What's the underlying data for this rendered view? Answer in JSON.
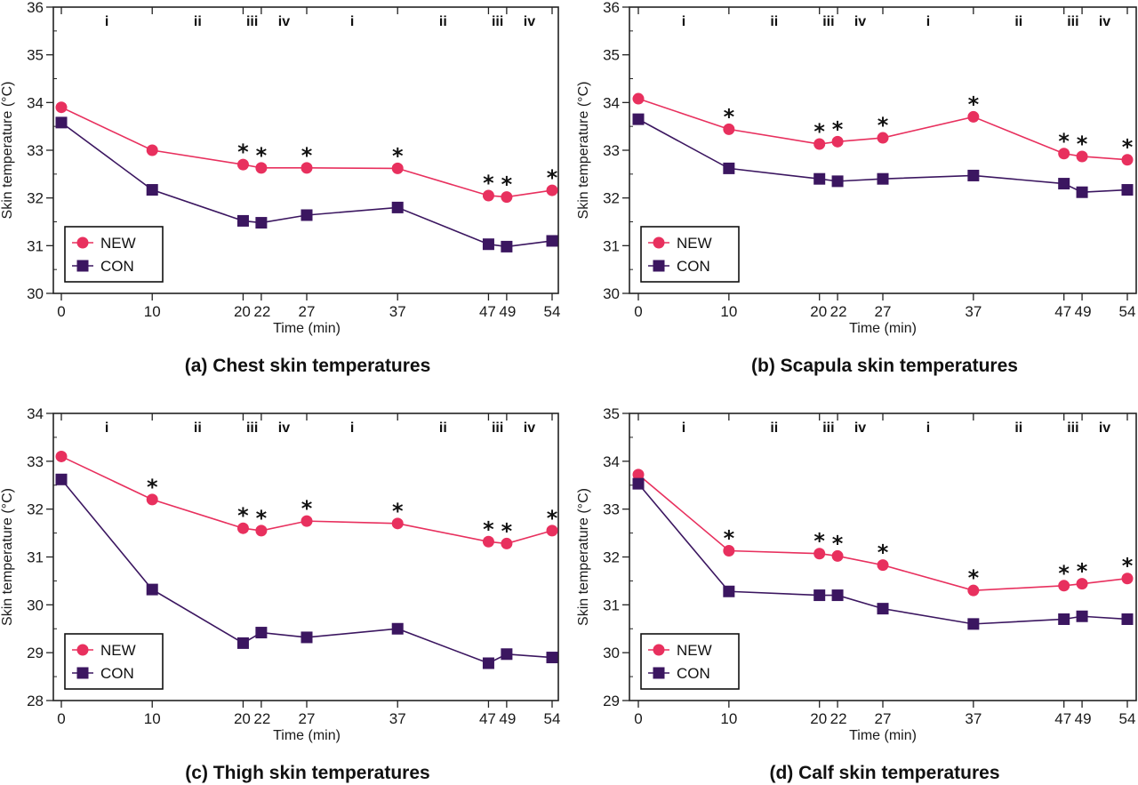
{
  "colors": {
    "NEW": "#E8305E",
    "CON": "#3B1660",
    "axis": "#222222"
  },
  "chart_data": [
    {
      "id": "a",
      "type": "line",
      "title": "(a) Chest skin temperatures",
      "xlabel": "Time (min)",
      "ylabel": "Skin temperature (°C)",
      "x": [
        0,
        10,
        20,
        22,
        27,
        37,
        47,
        49,
        54
      ],
      "x_tick_labels": [
        "0",
        "10",
        "20",
        "22",
        "27",
        "37",
        "47",
        "49",
        "54"
      ],
      "ylim": [
        30,
        36
      ],
      "y_ticks": [
        30,
        31,
        32,
        33,
        34,
        35,
        36
      ],
      "phases": [
        {
          "label": "i",
          "from": 0,
          "to": 10
        },
        {
          "label": "ii",
          "from": 10,
          "to": 20
        },
        {
          "label": "iii",
          "from": 20,
          "to": 22
        },
        {
          "label": "iv",
          "from": 22,
          "to": 27
        },
        {
          "label": "i",
          "from": 27,
          "to": 37
        },
        {
          "label": "ii",
          "from": 37,
          "to": 47
        },
        {
          "label": "iii",
          "from": 47,
          "to": 49
        },
        {
          "label": "iv",
          "from": 49,
          "to": 54
        }
      ],
      "series": [
        {
          "name": "NEW",
          "marker": "circle",
          "values": [
            33.9,
            33.0,
            32.7,
            32.63,
            32.63,
            32.62,
            32.05,
            32.02,
            32.16
          ]
        },
        {
          "name": "CON",
          "marker": "square",
          "values": [
            33.58,
            32.17,
            31.52,
            31.48,
            31.64,
            31.8,
            31.03,
            30.98,
            31.1
          ]
        }
      ],
      "significant_at": [
        20,
        22,
        27,
        37,
        47,
        49,
        54
      ],
      "significance_symbol": "*",
      "legend": "bottom-left",
      "grid": false
    },
    {
      "id": "b",
      "type": "line",
      "title": "(b) Scapula skin temperatures",
      "xlabel": "Time (min)",
      "ylabel": "Skin temperature (°C)",
      "x": [
        0,
        10,
        20,
        22,
        27,
        37,
        47,
        49,
        54
      ],
      "x_tick_labels": [
        "0",
        "10",
        "20",
        "22",
        "27",
        "37",
        "47",
        "49",
        "54"
      ],
      "ylim": [
        30,
        36
      ],
      "y_ticks": [
        30,
        31,
        32,
        33,
        34,
        35,
        36
      ],
      "phases": [
        {
          "label": "i",
          "from": 0,
          "to": 10
        },
        {
          "label": "ii",
          "from": 10,
          "to": 20
        },
        {
          "label": "iii",
          "from": 20,
          "to": 22
        },
        {
          "label": "iv",
          "from": 22,
          "to": 27
        },
        {
          "label": "i",
          "from": 27,
          "to": 37
        },
        {
          "label": "ii",
          "from": 37,
          "to": 47
        },
        {
          "label": "iii",
          "from": 47,
          "to": 49
        },
        {
          "label": "iv",
          "from": 49,
          "to": 54
        }
      ],
      "series": [
        {
          "name": "NEW",
          "marker": "circle",
          "values": [
            34.08,
            33.44,
            33.13,
            33.18,
            33.26,
            33.7,
            32.93,
            32.87,
            32.8
          ]
        },
        {
          "name": "CON",
          "marker": "square",
          "values": [
            33.65,
            32.62,
            32.4,
            32.35,
            32.4,
            32.47,
            32.3,
            32.12,
            32.17
          ]
        }
      ],
      "significant_at": [
        10,
        20,
        22,
        27,
        37,
        47,
        49,
        54
      ],
      "significance_symbol": "*",
      "legend": "bottom-left",
      "grid": false
    },
    {
      "id": "c",
      "type": "line",
      "title": "(c) Thigh skin temperatures",
      "xlabel": "Time (min)",
      "ylabel": "Skin temperature (°C)",
      "x": [
        0,
        10,
        20,
        22,
        27,
        37,
        47,
        49,
        54
      ],
      "x_tick_labels": [
        "0",
        "10",
        "20",
        "22",
        "27",
        "37",
        "47",
        "49",
        "54"
      ],
      "ylim": [
        28,
        34
      ],
      "y_ticks": [
        28,
        29,
        30,
        31,
        32,
        33,
        34
      ],
      "phases": [
        {
          "label": "i",
          "from": 0,
          "to": 10
        },
        {
          "label": "ii",
          "from": 10,
          "to": 20
        },
        {
          "label": "iii",
          "from": 20,
          "to": 22
        },
        {
          "label": "iv",
          "from": 22,
          "to": 27
        },
        {
          "label": "i",
          "from": 27,
          "to": 37
        },
        {
          "label": "ii",
          "from": 37,
          "to": 47
        },
        {
          "label": "iii",
          "from": 47,
          "to": 49
        },
        {
          "label": "iv",
          "from": 49,
          "to": 54
        }
      ],
      "series": [
        {
          "name": "NEW",
          "marker": "circle",
          "values": [
            33.1,
            32.2,
            31.6,
            31.55,
            31.75,
            31.7,
            31.32,
            31.28,
            31.55
          ]
        },
        {
          "name": "CON",
          "marker": "square",
          "values": [
            32.62,
            30.32,
            29.2,
            29.42,
            29.32,
            29.5,
            28.78,
            28.97,
            28.9
          ]
        }
      ],
      "significant_at": [
        10,
        20,
        22,
        27,
        37,
        47,
        49,
        54
      ],
      "significance_symbol": "*",
      "legend": "bottom-left",
      "grid": false
    },
    {
      "id": "d",
      "type": "line",
      "title": "(d) Calf skin temperatures",
      "xlabel": "Time (min)",
      "ylabel": "Skin temperature (°C)",
      "x": [
        0,
        10,
        20,
        22,
        27,
        37,
        47,
        49,
        54
      ],
      "x_tick_labels": [
        "0",
        "10",
        "20",
        "22",
        "27",
        "37",
        "47",
        "49",
        "54"
      ],
      "ylim": [
        29,
        35
      ],
      "y_ticks": [
        29,
        30,
        31,
        32,
        33,
        34,
        35
      ],
      "phases": [
        {
          "label": "i",
          "from": 0,
          "to": 10
        },
        {
          "label": "ii",
          "from": 10,
          "to": 20
        },
        {
          "label": "iii",
          "from": 20,
          "to": 22
        },
        {
          "label": "iv",
          "from": 22,
          "to": 27
        },
        {
          "label": "i",
          "from": 27,
          "to": 37
        },
        {
          "label": "ii",
          "from": 37,
          "to": 47
        },
        {
          "label": "iii",
          "from": 47,
          "to": 49
        },
        {
          "label": "iv",
          "from": 49,
          "to": 54
        }
      ],
      "series": [
        {
          "name": "NEW",
          "marker": "circle",
          "values": [
            33.72,
            32.13,
            32.07,
            32.02,
            31.83,
            31.3,
            31.4,
            31.44,
            31.55
          ]
        },
        {
          "name": "CON",
          "marker": "square",
          "values": [
            33.53,
            31.28,
            31.2,
            31.2,
            30.92,
            30.6,
            30.7,
            30.76,
            30.7
          ]
        }
      ],
      "significant_at": [
        10,
        20,
        22,
        27,
        37,
        47,
        49,
        54
      ],
      "significance_symbol": "*",
      "legend": "bottom-left",
      "grid": false
    }
  ]
}
